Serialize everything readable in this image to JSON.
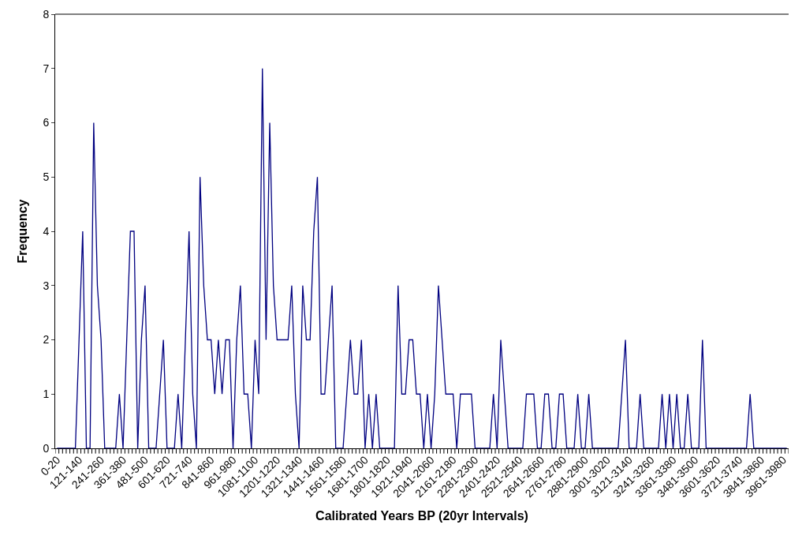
{
  "chart_data": {
    "type": "line",
    "xlabel": "Calibrated Years BP (20yr Intervals)",
    "ylabel": "Frequency",
    "categories": [
      "0-20",
      null,
      null,
      null,
      null,
      null,
      "121-140",
      null,
      null,
      null,
      null,
      null,
      "241-260",
      null,
      null,
      null,
      null,
      null,
      "361-380",
      null,
      null,
      null,
      null,
      null,
      "481-500",
      null,
      null,
      null,
      null,
      null,
      "601-620",
      null,
      null,
      null,
      null,
      null,
      "721-740",
      null,
      null,
      null,
      null,
      null,
      "841-860",
      null,
      null,
      null,
      null,
      null,
      "961-980",
      null,
      null,
      null,
      null,
      null,
      "1081-1100",
      null,
      null,
      null,
      null,
      null,
      "1201-1220",
      null,
      null,
      null,
      null,
      null,
      "1321-1340",
      null,
      null,
      null,
      null,
      null,
      "1441-1460",
      null,
      null,
      null,
      null,
      null,
      "1561-1580",
      null,
      null,
      null,
      null,
      null,
      "1681-1700",
      null,
      null,
      null,
      null,
      null,
      "1801-1820",
      null,
      null,
      null,
      null,
      null,
      "1921-1940",
      null,
      null,
      null,
      null,
      null,
      "2041-2060",
      null,
      null,
      null,
      null,
      null,
      "2161-2180",
      null,
      null,
      null,
      null,
      null,
      "2281-2300",
      null,
      null,
      null,
      null,
      null,
      "2401-2420",
      null,
      null,
      null,
      null,
      null,
      "2521-2540",
      null,
      null,
      null,
      null,
      null,
      "2641-2660",
      null,
      null,
      null,
      null,
      null,
      "2761-2780",
      null,
      null,
      null,
      null,
      null,
      "2881-2900",
      null,
      null,
      null,
      null,
      null,
      "3001-3020",
      null,
      null,
      null,
      null,
      null,
      "3121-3140",
      null,
      null,
      null,
      null,
      null,
      "3241-3260",
      null,
      null,
      null,
      null,
      null,
      "3361-3380",
      null,
      null,
      null,
      null,
      null,
      "3481-3500",
      null,
      null,
      null,
      null,
      null,
      "3601-3620",
      null,
      null,
      null,
      null,
      null,
      "3721-3740",
      null,
      null,
      null,
      null,
      null,
      "3841-3860",
      null,
      null,
      null,
      null,
      null,
      "3961-3980",
      null
    ],
    "series": [
      {
        "color": "#000080",
        "values": [
          0,
          0,
          0,
          0,
          0,
          0,
          2,
          4,
          0,
          0,
          6,
          3,
          2,
          0,
          0,
          0,
          0,
          1,
          0,
          2,
          4,
          4,
          0,
          2,
          3,
          0,
          0,
          0,
          1,
          2,
          0,
          0,
          0,
          1,
          0,
          2,
          4,
          1,
          0,
          5,
          3,
          2,
          2,
          1,
          2,
          1,
          2,
          2,
          0,
          2,
          3,
          1,
          1,
          0,
          2,
          1,
          7,
          2,
          6,
          3,
          2,
          2,
          2,
          2,
          3,
          1,
          0,
          3,
          2,
          2,
          4,
          5,
          1,
          1,
          2,
          3,
          0,
          0,
          0,
          1,
          2,
          1,
          1,
          2,
          0,
          1,
          0,
          1,
          0,
          0,
          0,
          0,
          0,
          3,
          1,
          1,
          2,
          2,
          1,
          1,
          0,
          1,
          0,
          1,
          3,
          2,
          1,
          1,
          1,
          0,
          1,
          1,
          1,
          1,
          0,
          0,
          0,
          0,
          0,
          1,
          0,
          2,
          1,
          0,
          0,
          0,
          0,
          0,
          1,
          1,
          1,
          0,
          0,
          1,
          1,
          0,
          0,
          1,
          1,
          0,
          0,
          0,
          1,
          0,
          0,
          1,
          0,
          0,
          0,
          0,
          0,
          0,
          0,
          0,
          1,
          2,
          0,
          0,
          0,
          1,
          0,
          0,
          0,
          0,
          0,
          1,
          0,
          1,
          0,
          1,
          0,
          0,
          1,
          0,
          0,
          0,
          2,
          0,
          0,
          0,
          0,
          0,
          0,
          0,
          0,
          0,
          0,
          0,
          0,
          1,
          0,
          0,
          0,
          0,
          0,
          0,
          0,
          0,
          0,
          0
        ]
      }
    ],
    "ylim": [
      0,
      8
    ],
    "yticks": [
      0,
      1,
      2,
      3,
      4,
      5,
      6,
      7,
      8
    ],
    "legend": false,
    "marker": "none",
    "line_style": "solid"
  }
}
